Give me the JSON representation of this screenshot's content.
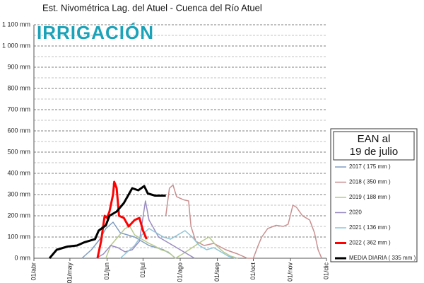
{
  "chart_data": {
    "type": "line",
    "title": "Est. Nivométrica Lag. del Atuel - Cuenca del Río Atuel",
    "logo": "IRRIGACIÓN",
    "legend_title": [
      "EAN al",
      "19 de julio"
    ],
    "xlim": [
      0,
      244
    ],
    "xticks": [
      {
        "value": 0,
        "label": "01/abr"
      },
      {
        "value": 30,
        "label": "01/may"
      },
      {
        "value": 61,
        "label": "01/jun"
      },
      {
        "value": 91,
        "label": "01/jul"
      },
      {
        "value": 122,
        "label": "01/ago"
      },
      {
        "value": 153,
        "label": "01/sep"
      },
      {
        "value": 183,
        "label": "01/oct"
      },
      {
        "value": 214,
        "label": "01/nov"
      },
      {
        "value": 244,
        "label": "01/dic"
      }
    ],
    "ylim": [
      0,
      1100
    ],
    "yticks": [
      {
        "value": 0,
        "label": "0 mm"
      },
      {
        "value": 100,
        "label": "100 mm"
      },
      {
        "value": 200,
        "label": "200 mm"
      },
      {
        "value": 300,
        "label": "300 mm"
      },
      {
        "value": 400,
        "label": "400 mm"
      },
      {
        "value": 500,
        "label": "500 mm"
      },
      {
        "value": 600,
        "label": "600 mm"
      },
      {
        "value": 700,
        "label": "700 mm"
      },
      {
        "value": 800,
        "label": "800 mm"
      },
      {
        "value": 900,
        "label": "900 mm"
      },
      {
        "value": 1000,
        "label": "1 000 mm"
      },
      {
        "value": 1100,
        "label": "1 100 mm"
      }
    ],
    "minor_yticks": [
      50,
      150,
      250,
      350,
      450,
      550,
      650,
      750,
      850,
      950,
      1050
    ],
    "grid": true,
    "series": [
      {
        "name": "2017  ( 175  mm )",
        "color": "#7f9cc0",
        "width": 1.5,
        "x": [
          40,
          48,
          55,
          60,
          66,
          72,
          78,
          84,
          90,
          96,
          102,
          108,
          114,
          118
        ],
        "values": [
          0,
          40,
          90,
          140,
          170,
          120,
          110,
          100,
          80,
          60,
          50,
          40,
          20,
          0
        ]
      },
      {
        "name": "2018  ( 350  mm )",
        "color": "#c98f8f",
        "width": 1.5,
        "x": [
          110,
          113,
          116,
          119,
          125,
          129,
          131,
          135,
          142,
          150,
          160,
          170,
          178,
          183,
          187,
          190,
          195,
          202,
          208,
          212,
          216,
          219,
          224,
          230,
          234,
          237,
          240
        ],
        "values": [
          200,
          330,
          345,
          290,
          275,
          270,
          150,
          80,
          60,
          70,
          40,
          20,
          0,
          0,
          60,
          100,
          140,
          155,
          150,
          160,
          250,
          240,
          200,
          180,
          120,
          40,
          0
        ]
      },
      {
        "name": "2019  ( 188  mm )",
        "color": "#b6c98b",
        "width": 1.5,
        "x": [
          60,
          64,
          70,
          76,
          80,
          84,
          90,
          96,
          100,
          106,
          112,
          118,
          124,
          132,
          140,
          146,
          152,
          158,
          164,
          170
        ],
        "values": [
          0,
          60,
          100,
          140,
          150,
          110,
          90,
          70,
          60,
          40,
          30,
          0,
          20,
          50,
          80,
          100,
          60,
          30,
          10,
          0
        ]
      },
      {
        "name": "2020",
        "color": "#9a8cc0",
        "width": 1.5,
        "x": [
          52,
          58,
          64,
          70,
          76,
          82,
          88,
          93,
          96,
          100,
          104,
          110,
          116,
          122,
          128,
          134
        ],
        "values": [
          0,
          20,
          60,
          50,
          30,
          40,
          80,
          270,
          180,
          140,
          100,
          80,
          60,
          40,
          20,
          0
        ]
      },
      {
        "name": "2021  ( 136  mm )",
        "color": "#8fc4d8",
        "width": 1.5,
        "x": [
          72,
          78,
          84,
          90,
          96,
          102,
          108,
          114,
          120,
          126,
          132,
          138,
          144,
          150,
          156,
          162,
          168
        ],
        "values": [
          0,
          30,
          60,
          110,
          140,
          120,
          100,
          90,
          110,
          130,
          100,
          60,
          40,
          50,
          30,
          10,
          0
        ]
      },
      {
        "name": "2022  ( 362  mm )",
        "color": "#ff0000",
        "width": 3,
        "x": [
          53,
          56,
          59,
          61,
          63,
          66,
          67,
          69,
          71,
          75,
          79,
          84,
          88,
          91,
          94
        ],
        "values": [
          0,
          80,
          200,
          190,
          220,
          300,
          360,
          330,
          200,
          190,
          150,
          180,
          190,
          130,
          90
        ]
      },
      {
        "name": "MEDIA DIARIA  ( 335  mm )",
        "color": "#000000",
        "width": 3,
        "x": [
          13,
          19,
          28,
          36,
          42,
          51,
          54,
          60,
          63,
          69,
          75,
          79,
          82,
          87,
          92,
          95,
          101,
          110
        ],
        "values": [
          0,
          40,
          55,
          60,
          75,
          90,
          130,
          155,
          200,
          220,
          260,
          300,
          330,
          320,
          340,
          305,
          295,
          295
        ]
      }
    ]
  }
}
